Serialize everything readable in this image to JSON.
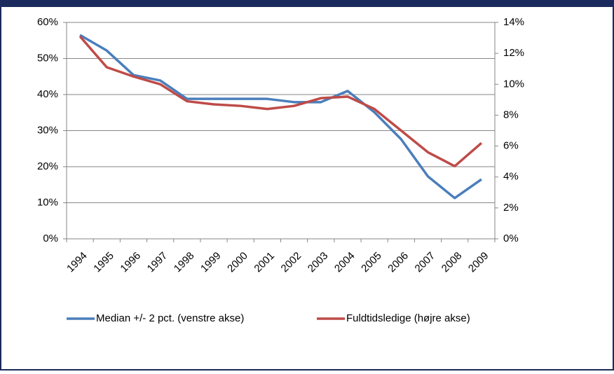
{
  "chart_data": {
    "type": "line",
    "categories": [
      "1994",
      "1995",
      "1996",
      "1997",
      "1998",
      "1999",
      "2000",
      "2001",
      "2002",
      "2003",
      "2004",
      "2005",
      "2006",
      "2007",
      "2008",
      "2009"
    ],
    "series": [
      {
        "name": "Median +/- 2 pct. (venstre akse)",
        "color": "#4a7ebb",
        "axis": "y",
        "values": [
          56.5,
          52.2,
          45.4,
          43.9,
          38.8,
          38.8,
          38.8,
          38.8,
          37.9,
          37.9,
          41.0,
          35.1,
          27.6,
          17.3,
          11.3,
          16.5
        ]
      },
      {
        "name": "Fuldtidsledige (højre akse)",
        "color": "#be4b48",
        "axis": "y2",
        "values": [
          13.1,
          11.1,
          10.5,
          10.0,
          8.9,
          8.7,
          8.6,
          8.4,
          8.6,
          9.1,
          9.2,
          8.4,
          7.0,
          5.6,
          4.7,
          6.2
        ]
      }
    ],
    "ylim": [
      0,
      60
    ],
    "yticks": [
      {
        "value": 0,
        "label": "0%"
      },
      {
        "value": 10,
        "label": "10%"
      },
      {
        "value": 20,
        "label": "20%"
      },
      {
        "value": 30,
        "label": "30%"
      },
      {
        "value": 40,
        "label": "40%"
      },
      {
        "value": 50,
        "label": "50%"
      },
      {
        "value": 60,
        "label": "60%"
      }
    ],
    "y2lim": [
      0,
      14
    ],
    "y2ticks": [
      {
        "value": 0,
        "label": "0%"
      },
      {
        "value": 2,
        "label": "2%"
      },
      {
        "value": 4,
        "label": "4%"
      },
      {
        "value": 6,
        "label": "6%"
      },
      {
        "value": 8,
        "label": "8%"
      },
      {
        "value": 10,
        "label": "10%"
      },
      {
        "value": 12,
        "label": "12%"
      },
      {
        "value": 14,
        "label": "14%"
      }
    ],
    "grid": true,
    "legend": "bottom"
  }
}
